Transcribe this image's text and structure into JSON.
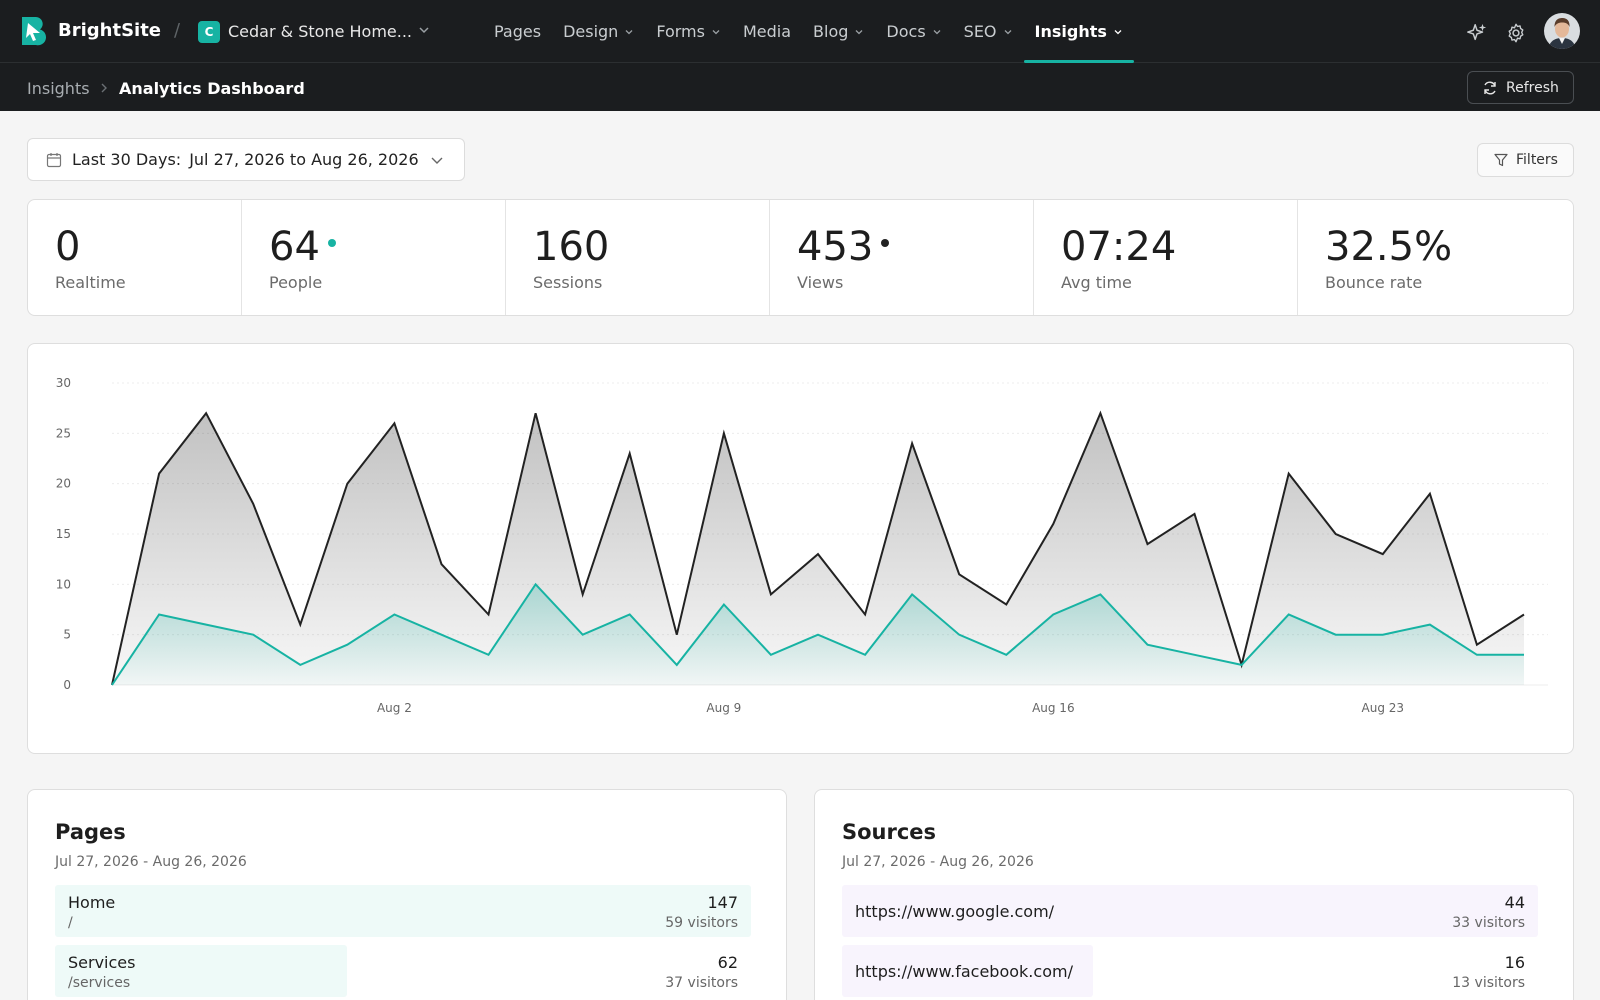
{
  "app": {
    "brand": "BrightSite",
    "site_badge": "C",
    "site_name": "Cedar & Stone Home...",
    "accent": "#17b3a3",
    "logo_icon": "bookmark-b-logo"
  },
  "nav": [
    {
      "label": "Pages",
      "dropdown": false,
      "active": false
    },
    {
      "label": "Design",
      "dropdown": true,
      "active": false
    },
    {
      "label": "Forms",
      "dropdown": true,
      "active": false
    },
    {
      "label": "Media",
      "dropdown": false,
      "active": false
    },
    {
      "label": "Blog",
      "dropdown": true,
      "active": false
    },
    {
      "label": "Docs",
      "dropdown": true,
      "active": false
    },
    {
      "label": "SEO",
      "dropdown": true,
      "active": false
    },
    {
      "label": "Insights",
      "dropdown": true,
      "active": true
    }
  ],
  "top_icons": [
    "sparkles-icon",
    "gear-icon",
    "avatar"
  ],
  "breadcrumb": {
    "root": "Insights",
    "current": "Analytics Dashboard"
  },
  "refresh_label": "Refresh",
  "date_range": {
    "label": "Last 30 Days:",
    "value": "Jul 27, 2026 to Aug 26, 2026"
  },
  "filters_label": "Filters",
  "metrics": [
    {
      "value": "0",
      "label": "Realtime",
      "dot": null
    },
    {
      "value": "64",
      "label": "People",
      "dot": "#17b3a3"
    },
    {
      "value": "160",
      "label": "Sessions",
      "dot": null
    },
    {
      "value": "453",
      "label": "Views",
      "dot": "#222222"
    },
    {
      "value": "07:24",
      "label": "Avg time",
      "dot": null
    },
    {
      "value": "32.5%",
      "label": "Bounce rate",
      "dot": null
    }
  ],
  "chart_data": {
    "type": "area",
    "x_ticks": [
      "Aug 2",
      "Aug 9",
      "Aug 16",
      "Aug 23"
    ],
    "ylim": [
      0,
      30
    ],
    "y_ticks": [
      0,
      5,
      10,
      15,
      20,
      25,
      30
    ],
    "grid": true,
    "series": [
      {
        "color": "#222222",
        "values": [
          0,
          21,
          27,
          18,
          6,
          20,
          26,
          12,
          7,
          27,
          9,
          23,
          5,
          25,
          9,
          13,
          7,
          24,
          11,
          8,
          16,
          27,
          14,
          17,
          2,
          21,
          15,
          13,
          19,
          4,
          7
        ]
      },
      {
        "color": "#17b3a3",
        "values": [
          0,
          7,
          6,
          5,
          2,
          4,
          7,
          5,
          3,
          10,
          5,
          7,
          2,
          8,
          3,
          5,
          3,
          9,
          5,
          3,
          7,
          9,
          4,
          3,
          2,
          7,
          5,
          5,
          6,
          3,
          3
        ]
      }
    ]
  },
  "pages_card": {
    "title": "Pages",
    "range": "Jul 27, 2026 - Aug 26, 2026",
    "bar_color": "#eefaf8",
    "rows": [
      {
        "name": "Home",
        "path": "/",
        "count": "147",
        "visitors": "59 visitors",
        "share": 1.0
      },
      {
        "name": "Services",
        "path": "/services",
        "count": "62",
        "visitors": "37 visitors",
        "share": 0.42
      }
    ]
  },
  "sources_card": {
    "title": "Sources",
    "range": "Jul 27, 2026 - Aug 26, 2026",
    "bar_color": "#f8f4fd",
    "rows": [
      {
        "name": "https://www.google.com/",
        "count": "44",
        "visitors": "33 visitors",
        "share": 1.0
      },
      {
        "name": "https://www.facebook.com/",
        "count": "16",
        "visitors": "13 visitors",
        "share": 0.36
      }
    ]
  }
}
